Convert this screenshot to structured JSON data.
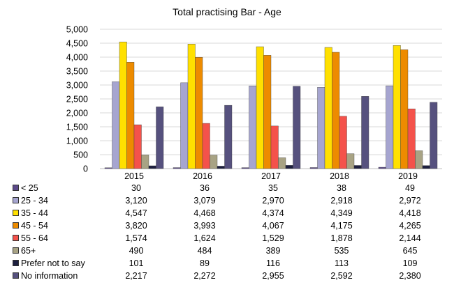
{
  "title": "Total practising Bar - Age",
  "chart_data": {
    "type": "bar",
    "title": "Total practising Bar - Age",
    "categories": [
      "2015",
      "2016",
      "2017",
      "2018",
      "2019"
    ],
    "yticks": [
      "0",
      "500",
      "1,000",
      "1,500",
      "2,000",
      "2,500",
      "3,000",
      "3,500",
      "4,000",
      "4,500",
      "5,000"
    ],
    "ylim": [
      0,
      5000
    ],
    "grid": true,
    "legend": "data-table",
    "series": [
      {
        "name": "< 25",
        "color": "#5c4a8a",
        "values": [
          30,
          36,
          35,
          38,
          49
        ],
        "display": [
          "30",
          "36",
          "35",
          "38",
          "49"
        ]
      },
      {
        "name": "25 - 34",
        "color": "#a6a5d0",
        "values": [
          3120,
          3079,
          2970,
          2918,
          2972
        ],
        "display": [
          "3,120",
          "3,079",
          "2,970",
          "2,918",
          "2,972"
        ]
      },
      {
        "name": "35 - 44",
        "color": "#ffe000",
        "values": [
          4547,
          4468,
          4374,
          4349,
          4418
        ],
        "display": [
          "4,547",
          "4,468",
          "4,374",
          "4,349",
          "4,418"
        ]
      },
      {
        "name": "45 - 54",
        "color": "#ed8b00",
        "values": [
          3820,
          3993,
          4067,
          4175,
          4265
        ],
        "display": [
          "3,820",
          "3,993",
          "4,067",
          "4,175",
          "4,265"
        ]
      },
      {
        "name": "55 - 64",
        "color": "#f4524b",
        "values": [
          1574,
          1624,
          1529,
          1878,
          2144
        ],
        "display": [
          "1,574",
          "1,624",
          "1,529",
          "1,878",
          "2,144"
        ]
      },
      {
        "name": "65+",
        "color": "#a8a384",
        "values": [
          490,
          484,
          389,
          535,
          645
        ],
        "display": [
          "490",
          "484",
          "389",
          "535",
          "645"
        ]
      },
      {
        "name": "Prefer not to say",
        "color": "#1d1f3f",
        "values": [
          101,
          89,
          116,
          113,
          109
        ],
        "display": [
          "101",
          "89",
          "116",
          "113",
          "109"
        ]
      },
      {
        "name": "No information",
        "color": "#56517e",
        "values": [
          2217,
          2272,
          2955,
          2592,
          2380
        ],
        "display": [
          "2,217",
          "2,272",
          "2,955",
          "2,592",
          "2,380"
        ]
      }
    ]
  }
}
